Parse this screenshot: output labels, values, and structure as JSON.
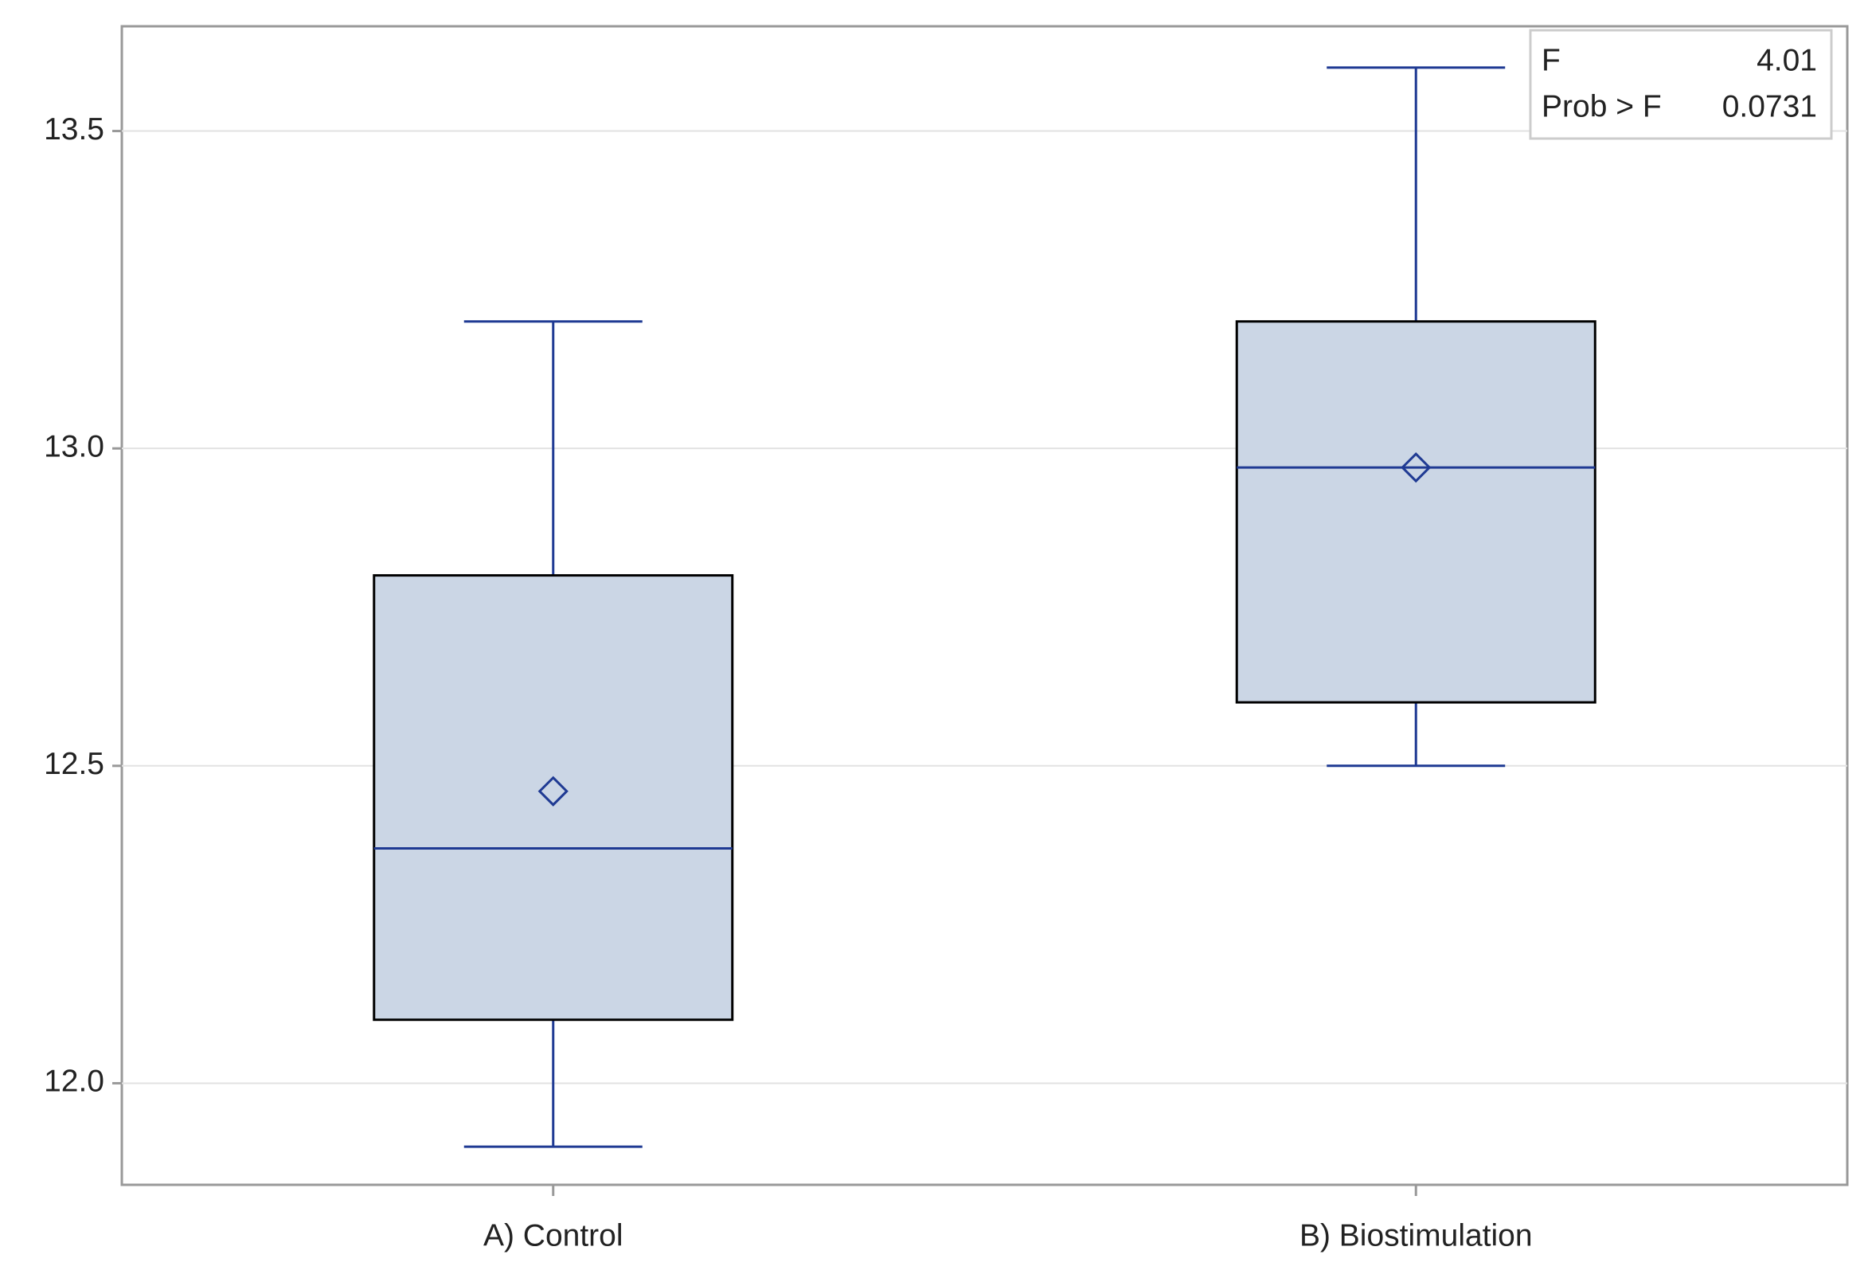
{
  "chart_data": {
    "type": "box",
    "categories": [
      "A) Control",
      "B) Biostimulation"
    ],
    "stats": [
      {
        "whisker_low": 11.9,
        "q1": 12.1,
        "median": 12.37,
        "q3": 12.8,
        "whisker_high": 13.2,
        "mean": 12.46
      },
      {
        "whisker_low": 12.5,
        "q1": 12.6,
        "median": 12.97,
        "q3": 13.2,
        "whisker_high": 13.6,
        "mean": 12.97
      }
    ],
    "box_color": "#cbd6e5",
    "line_color": "#1f3a93",
    "ylim": [
      11.84,
      13.665
    ],
    "yticks": [
      {
        "value": 12,
        "label": "12.0"
      },
      {
        "value": 12.5,
        "label": "12.5"
      },
      {
        "value": 13,
        "label": "13.0"
      },
      {
        "value": 13.5,
        "label": "13.5"
      }
    ],
    "grid": true,
    "inset": {
      "rows": [
        {
          "label": "F",
          "value": 4.01
        },
        {
          "label": "Prob > F",
          "value": 0.0731
        }
      ]
    }
  }
}
